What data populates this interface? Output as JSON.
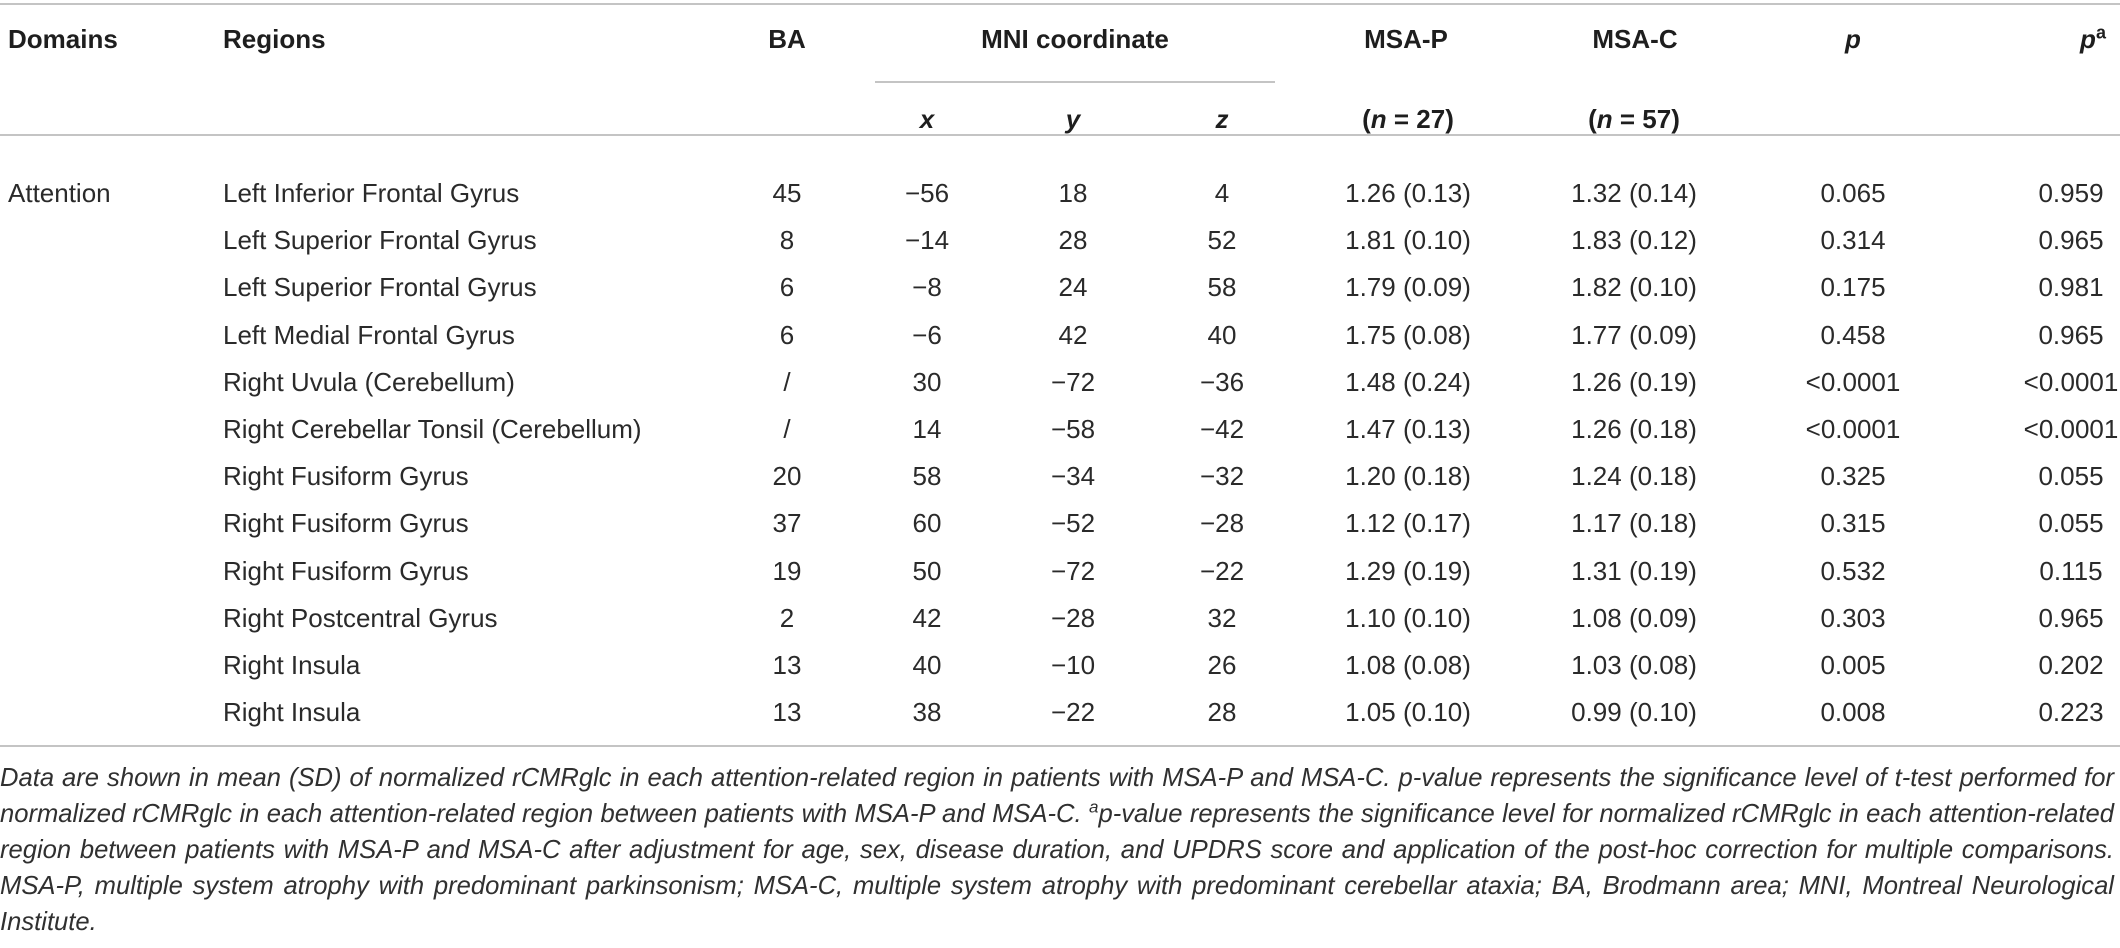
{
  "header": {
    "domains": "Domains",
    "regions": "Regions",
    "ba": "BA",
    "mni": "MNI coordinate",
    "x": "x",
    "y": "y",
    "z": "z",
    "msap": "MSA-P",
    "msac": "MSA-C",
    "n_msap_pre": "(",
    "n_msap_n": "n",
    "n_msap_post": " = 27)",
    "n_msac_pre": "(",
    "n_msac_n": "n",
    "n_msac_post": " = 57)",
    "p": "p",
    "pa_p": "p",
    "pa_sup": "a"
  },
  "domain_label": "Attention",
  "rows": [
    {
      "region": "Left Inferior Frontal Gyrus",
      "ba": "45",
      "x": "−56",
      "y": "18",
      "z": "4",
      "msap": "1.26 (0.13)",
      "msac": "1.32 (0.14)",
      "p": "0.065",
      "pa": "0.959"
    },
    {
      "region": "Left Superior Frontal Gyrus",
      "ba": "8",
      "x": "−14",
      "y": "28",
      "z": "52",
      "msap": "1.81 (0.10)",
      "msac": "1.83 (0.12)",
      "p": "0.314",
      "pa": "0.965"
    },
    {
      "region": "Left Superior Frontal Gyrus",
      "ba": "6",
      "x": "−8",
      "y": "24",
      "z": "58",
      "msap": "1.79 (0.09)",
      "msac": "1.82 (0.10)",
      "p": "0.175",
      "pa": "0.981"
    },
    {
      "region": "Left Medial Frontal Gyrus",
      "ba": "6",
      "x": "−6",
      "y": "42",
      "z": "40",
      "msap": "1.75 (0.08)",
      "msac": "1.77 (0.09)",
      "p": "0.458",
      "pa": "0.965"
    },
    {
      "region": "Right Uvula  (Cerebellum)",
      "ba": "/",
      "x": "30",
      "y": "−72",
      "z": "−36",
      "msap": "1.48 (0.24)",
      "msac": "1.26 (0.19)",
      "p": "<0.0001",
      "pa": "<0.0001"
    },
    {
      "region": "Right Cerebellar Tonsil  (Cerebellum)",
      "ba": "/",
      "x": "14",
      "y": "−58",
      "z": "−42",
      "msap": "1.47 (0.13)",
      "msac": "1.26 (0.18)",
      "p": "<0.0001",
      "pa": "<0.0001"
    },
    {
      "region": "Right Fusiform Gyrus",
      "ba": "20",
      "x": "58",
      "y": "−34",
      "z": "−32",
      "msap": "1.20 (0.18)",
      "msac": "1.24 (0.18)",
      "p": "0.325",
      "pa": "0.055"
    },
    {
      "region": "Right Fusiform Gyrus",
      "ba": "37",
      "x": "60",
      "y": "−52",
      "z": "−28",
      "msap": "1.12 (0.17)",
      "msac": "1.17 (0.18)",
      "p": "0.315",
      "pa": "0.055"
    },
    {
      "region": "Right Fusiform Gyrus",
      "ba": "19",
      "x": "50",
      "y": "−72",
      "z": "−22",
      "msap": "1.29 (0.19)",
      "msac": "1.31 (0.19)",
      "p": "0.532",
      "pa": "0.115"
    },
    {
      "region": "Right Postcentral Gyrus",
      "ba": "2",
      "x": "42",
      "y": "−28",
      "z": "32",
      "msap": "1.10 (0.10)",
      "msac": "1.08 (0.09)",
      "p": "0.303",
      "pa": "0.965"
    },
    {
      "region": "Right Insula",
      "ba": "13",
      "x": "40",
      "y": "−10",
      "z": "26",
      "msap": "1.08 (0.08)",
      "msac": "1.03 (0.08)",
      "p": "0.005",
      "pa": "0.202"
    },
    {
      "region": "Right Insula",
      "ba": "13",
      "x": "38",
      "y": "−22",
      "z": "28",
      "msap": "1.05 (0.10)",
      "msac": "0.99 (0.10)",
      "p": "0.008",
      "pa": "0.223"
    }
  ],
  "caption": {
    "part1": "Data are shown in mean (SD) of normalized rCMRglc in each attention-related region in patients with MSA-P and MSA-C. p-value represents the significance level of t-test performed for normalized rCMRglc in each attention-related region between patients with MSA-P and MSA-C. ",
    "sup": "a",
    "part2": "p-value represents the significance level for normalized rCMRglc in each attention-related region between patients with MSA-P and MSA-C after adjustment for age, sex, disease duration, and UPDRS score and application of the post-hoc correction for multiple comparisons. MSA-P, multiple system atrophy with predominant parkinsonism; MSA-C, multiple system atrophy with predominant cerebellar ataxia; BA, Brodmann area; MNI, Montreal Neurological Institute."
  }
}
